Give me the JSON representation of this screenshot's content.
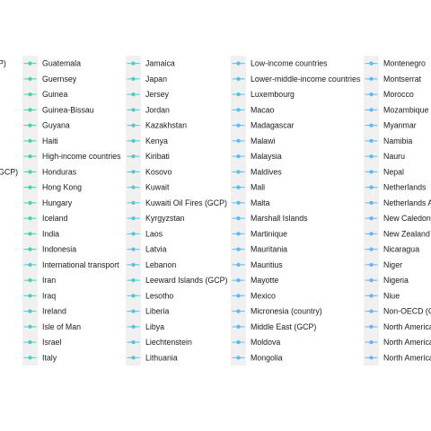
{
  "chart_data": {
    "type": "line",
    "title": "",
    "xlabel": "",
    "ylabel": "",
    "legend": {
      "placement": "bottom (cropped view)",
      "columns": [
        {
          "entries": [
            {
              "label": "P)",
              "color": "#3ecf99"
            },
            {
              "label": "",
              "color": "#3ecf9b"
            },
            {
              "label": "",
              "color": "#3fcf9e"
            },
            {
              "label": "",
              "color": "#40cfa0"
            },
            {
              "label": "",
              "color": "#40cfa3"
            },
            {
              "label": "",
              "color": "#41cfa6"
            },
            {
              "label": "",
              "color": "#42cfa9"
            },
            {
              "label": "GCP)",
              "color": "#42cfac"
            },
            {
              "label": "",
              "color": "#43cfae"
            },
            {
              "label": "",
              "color": "#44cfb0"
            },
            {
              "label": "",
              "color": "#44cfb3"
            },
            {
              "label": "",
              "color": "#45cfb6"
            },
            {
              "label": "",
              "color": "#46cfb8"
            },
            {
              "label": "",
              "color": "#47cfbb"
            },
            {
              "label": "",
              "color": "#47cfbe"
            },
            {
              "label": "",
              "color": "#48cfc0"
            },
            {
              "label": "",
              "color": "#49cfc2"
            },
            {
              "label": "",
              "color": "#4acfc5"
            },
            {
              "label": "",
              "color": "#4acfc7"
            },
            {
              "label": "",
              "color": "#4bcfca"
            }
          ]
        },
        {
          "entries": [
            {
              "label": "Guatemala",
              "color": "#3fd6a0"
            },
            {
              "label": "Guernsey",
              "color": "#40d6a2"
            },
            {
              "label": "Guinea",
              "color": "#40d5a4"
            },
            {
              "label": "Guinea-Bissau",
              "color": "#41d5a6"
            },
            {
              "label": "Guyana",
              "color": "#41d4a8"
            },
            {
              "label": "Haiti",
              "color": "#42d4aa"
            },
            {
              "label": "High-income countries",
              "color": "#42d3ac"
            },
            {
              "label": "Honduras",
              "color": "#43d3ae"
            },
            {
              "label": "Hong Kong",
              "color": "#43d2b0"
            },
            {
              "label": "Hungary",
              "color": "#44d2b2"
            },
            {
              "label": "Iceland",
              "color": "#44d1b4"
            },
            {
              "label": "India",
              "color": "#45d1b6"
            },
            {
              "label": "Indonesia",
              "color": "#45d0b8"
            },
            {
              "label": "International transport",
              "color": "#46d0ba"
            },
            {
              "label": "Iran",
              "color": "#46cfbc"
            },
            {
              "label": "Iraq",
              "color": "#47cfbe"
            },
            {
              "label": "Ireland",
              "color": "#47cec0"
            },
            {
              "label": "Isle of Man",
              "color": "#48cec2"
            },
            {
              "label": "Israel",
              "color": "#48cdc4"
            },
            {
              "label": "Italy",
              "color": "#49cdc6"
            }
          ]
        },
        {
          "entries": [
            {
              "label": "Jamaica",
              "color": "#46cdc8"
            },
            {
              "label": "Japan",
              "color": "#47ccca"
            },
            {
              "label": "Jersey",
              "color": "#47cccc"
            },
            {
              "label": "Jordan",
              "color": "#48cbce"
            },
            {
              "label": "Kazakhstan",
              "color": "#48cbd0"
            },
            {
              "label": "Kenya",
              "color": "#49cad2"
            },
            {
              "label": "Kiribati",
              "color": "#49cad3"
            },
            {
              "label": "Kosovo",
              "color": "#4ac9d5"
            },
            {
              "label": "Kuwait",
              "color": "#4ac9d6"
            },
            {
              "label": "Kuwaiti Oil Fires (GCP)",
              "color": "#4bc8d8"
            },
            {
              "label": "Kyrgyzstan",
              "color": "#4bc8d9"
            },
            {
              "label": "Laos",
              "color": "#4cc7db"
            },
            {
              "label": "Latvia",
              "color": "#4cc7dc"
            },
            {
              "label": "Lebanon",
              "color": "#4dc6de"
            },
            {
              "label": "Leeward Islands (GCP)",
              "color": "#4dc6df"
            },
            {
              "label": "Lesotho",
              "color": "#4ec5e1"
            },
            {
              "label": "Liberia",
              "color": "#4ec5e2"
            },
            {
              "label": "Libya",
              "color": "#4fc4e3"
            },
            {
              "label": "Liechtenstein",
              "color": "#4fc4e4"
            },
            {
              "label": "Lithuania",
              "color": "#50c3e6"
            }
          ]
        },
        {
          "entries": [
            {
              "label": "Low-income countries",
              "color": "#4fc3e8"
            },
            {
              "label": "Lower-middle-income countries",
              "color": "#50c2e9"
            },
            {
              "label": "Luxembourg",
              "color": "#50c2ea"
            },
            {
              "label": "Macao",
              "color": "#51c1eb"
            },
            {
              "label": "Madagascar",
              "color": "#51c1ec"
            },
            {
              "label": "Malawi",
              "color": "#52c0ed"
            },
            {
              "label": "Malaysia",
              "color": "#52c0ee"
            },
            {
              "label": "Maldives",
              "color": "#53bfef"
            },
            {
              "label": "Mali",
              "color": "#53bff0"
            },
            {
              "label": "Malta",
              "color": "#54bef1"
            },
            {
              "label": "Marshall Islands",
              "color": "#54bef2"
            },
            {
              "label": "Martinique",
              "color": "#55bdf3"
            },
            {
              "label": "Mauritania",
              "color": "#55bdf3"
            },
            {
              "label": "Mauritius",
              "color": "#56bcf4"
            },
            {
              "label": "Mayotte",
              "color": "#56bcf4"
            },
            {
              "label": "Mexico",
              "color": "#57bbf5"
            },
            {
              "label": "Micronesia (country)",
              "color": "#57bbf5"
            },
            {
              "label": "Middle East (GCP)",
              "color": "#58baf6"
            },
            {
              "label": "Moldova",
              "color": "#58baf6"
            },
            {
              "label": "Mongolia",
              "color": "#59b9f7"
            }
          ]
        },
        {
          "entries": [
            {
              "label": "Montenegro",
              "color": "#5ab9f8"
            },
            {
              "label": "Montserrat",
              "color": "#5bb8f8"
            },
            {
              "label": "Morocco",
              "color": "#5cb8f8"
            },
            {
              "label": "Mozambique",
              "color": "#5db7f9"
            },
            {
              "label": "Myanmar",
              "color": "#5eb7f9"
            },
            {
              "label": "Namibia",
              "color": "#5fb6f9"
            },
            {
              "label": "Nauru",
              "color": "#60b6f9"
            },
            {
              "label": "Nepal",
              "color": "#61b5fa"
            },
            {
              "label": "Netherlands",
              "color": "#62b5fa"
            },
            {
              "label": "Netherlands A",
              "color": "#63b4fa"
            },
            {
              "label": "New Caledon",
              "color": "#64b4fa"
            },
            {
              "label": "New Zealand",
              "color": "#65b3fb"
            },
            {
              "label": "Nicaragua",
              "color": "#66b3fb"
            },
            {
              "label": "Niger",
              "color": "#67b2fb"
            },
            {
              "label": "Nigeria",
              "color": "#68b2fb"
            },
            {
              "label": "Niue",
              "color": "#69b1fb"
            },
            {
              "label": "Non-OECD (G",
              "color": "#6ab1fc"
            },
            {
              "label": "North America",
              "color": "#6bb0fc"
            },
            {
              "label": "North America",
              "color": "#6cb0fc"
            },
            {
              "label": "North America",
              "color": "#6dafff"
            }
          ]
        }
      ]
    }
  }
}
